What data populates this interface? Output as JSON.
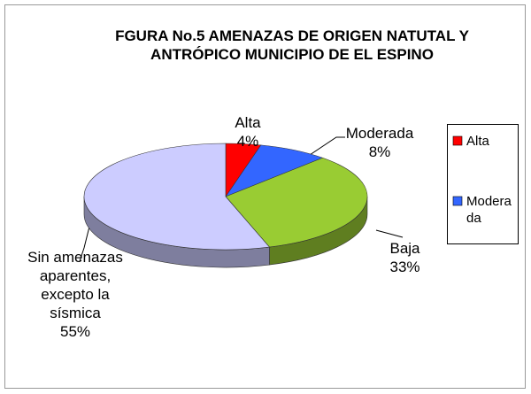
{
  "chart_data": {
    "type": "pie",
    "title": "FGURA No.5 AMENAZAS DE ORIGEN NATUTAL Y ANTRÓPICO MUNICIPIO DE EL ESPINO",
    "categories": [
      "Alta",
      "Moderada",
      "Baja",
      "Sin amenazas aparentes, excepto la sísmica"
    ],
    "values": [
      4,
      8,
      33,
      55
    ],
    "value_labels": [
      "4%",
      "8%",
      "33%",
      "55%"
    ],
    "colors": [
      "#ff0000",
      "#3366ff",
      "#99cc33",
      "#ccccff"
    ],
    "legend": "right"
  }
}
